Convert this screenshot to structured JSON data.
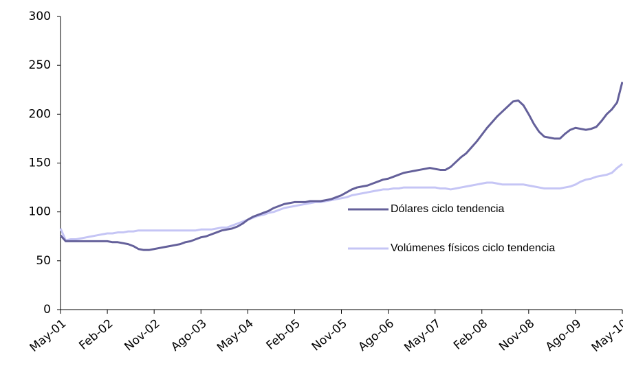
{
  "chart_data": {
    "type": "line",
    "categories": [
      "May-01",
      null,
      null,
      null,
      null,
      null,
      null,
      null,
      null,
      "Feb-02",
      null,
      null,
      null,
      null,
      null,
      null,
      null,
      null,
      "Nov-02",
      null,
      null,
      null,
      null,
      null,
      null,
      null,
      null,
      "Ago-03",
      null,
      null,
      null,
      null,
      null,
      null,
      null,
      null,
      "May-04",
      null,
      null,
      null,
      null,
      null,
      null,
      null,
      null,
      "Feb-05",
      null,
      null,
      null,
      null,
      null,
      null,
      null,
      null,
      "Nov-05",
      null,
      null,
      null,
      null,
      null,
      null,
      null,
      null,
      "Ago-06",
      null,
      null,
      null,
      null,
      null,
      null,
      null,
      null,
      "May-07",
      null,
      null,
      null,
      null,
      null,
      null,
      null,
      null,
      "Feb-08",
      null,
      null,
      null,
      null,
      null,
      null,
      null,
      null,
      "Nov-08",
      null,
      null,
      null,
      null,
      null,
      null,
      null,
      null,
      "Ago-09",
      null,
      null,
      null,
      null,
      null,
      null,
      null,
      null,
      "May-10"
    ],
    "series": [
      {
        "name": "Dólares ciclo tendencia",
        "color": "#64609a",
        "values": [
          76,
          70,
          70,
          70,
          70,
          70,
          70,
          70,
          70,
          70,
          69,
          69,
          68,
          67,
          65,
          62,
          61,
          61,
          62,
          63,
          64,
          65,
          66,
          67,
          69,
          70,
          72,
          74,
          75,
          77,
          79,
          81,
          82,
          83,
          85,
          88,
          92,
          95,
          97,
          99,
          101,
          104,
          106,
          108,
          109,
          110,
          110,
          110,
          111,
          111,
          111,
          112,
          113,
          115,
          117,
          120,
          123,
          125,
          126,
          127,
          129,
          131,
          133,
          134,
          136,
          138,
          140,
          141,
          142,
          143,
          144,
          145,
          144,
          143,
          143,
          146,
          151,
          156,
          160,
          166,
          172,
          179,
          186,
          192,
          198,
          203,
          208,
          213,
          214,
          209,
          200,
          190,
          182,
          177,
          176,
          175,
          175,
          180,
          184,
          186,
          185,
          184,
          185,
          187,
          193,
          200,
          205,
          212,
          233
        ]
      },
      {
        "name": "Volúmenes físicos ciclo tendencia",
        "color": "#c5c5f5",
        "values": [
          83,
          71,
          72,
          72,
          73,
          74,
          75,
          76,
          77,
          78,
          78,
          79,
          79,
          80,
          80,
          81,
          81,
          81,
          81,
          81,
          81,
          81,
          81,
          81,
          81,
          81,
          81,
          82,
          82,
          82,
          83,
          84,
          84,
          86,
          88,
          90,
          92,
          94,
          96,
          97,
          99,
          100,
          102,
          104,
          105,
          106,
          107,
          108,
          109,
          110,
          110,
          111,
          112,
          113,
          114,
          115,
          117,
          118,
          119,
          120,
          121,
          122,
          123,
          123,
          124,
          124,
          125,
          125,
          125,
          125,
          125,
          125,
          125,
          124,
          124,
          123,
          124,
          125,
          126,
          127,
          128,
          129,
          130,
          130,
          129,
          128,
          128,
          128,
          128,
          128,
          127,
          126,
          125,
          124,
          124,
          124,
          124,
          125,
          126,
          128,
          131,
          133,
          134,
          136,
          137,
          138,
          140,
          145,
          149
        ]
      }
    ],
    "ylim": [
      0,
      300
    ],
    "yticks": [
      0,
      50,
      100,
      150,
      200,
      250,
      300
    ],
    "grid": false
  }
}
